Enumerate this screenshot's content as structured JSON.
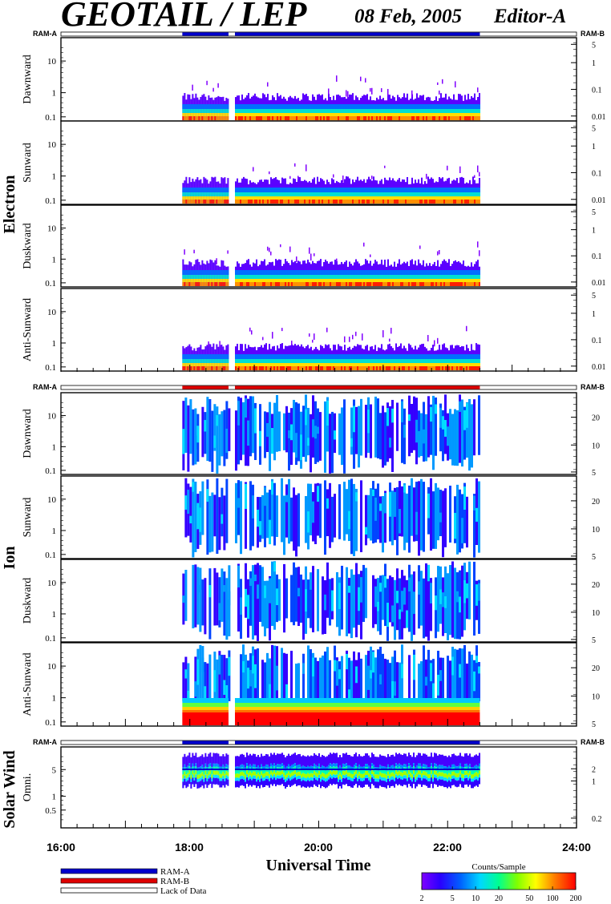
{
  "header": {
    "instrument": "GEOTAIL / LEP",
    "date": "08 Feb, 2005",
    "editor": "Editor-A"
  },
  "groups": [
    {
      "name": "Electron",
      "panels": [
        "Dawnward",
        "Sunward",
        "Duskward",
        "Anti-Sunward"
      ]
    },
    {
      "name": "Ion",
      "panels": [
        "Dawnward",
        "Sunward",
        "Duskward",
        "Anti-Sunward"
      ]
    },
    {
      "name": "Solar Wind",
      "panels": [
        "Omni."
      ]
    }
  ],
  "ram_labels": {
    "left": "RAM-A",
    "right": "RAM-B"
  },
  "axes": {
    "left_ticks_main": [
      "10",
      "1",
      "0.1"
    ],
    "left_ticks_sw": [
      "5",
      "1",
      "0.5"
    ],
    "right_ticks_electron": [
      "5",
      "1",
      "0.1",
      "0.01"
    ],
    "right_ticks_ion": [
      "20",
      "10",
      "5"
    ],
    "right_ticks_ion_top": [
      "20",
      "10",
      "5"
    ],
    "right_ticks_sw": [
      "2",
      "1",
      "0.2"
    ],
    "x_tick_labels": [
      "16:00",
      "18:00",
      "20:00",
      "22:00",
      "24:00"
    ],
    "xlabel": "Universal Time"
  },
  "legend": {
    "items": [
      {
        "label": "RAM-A",
        "color": "#0000cc"
      },
      {
        "label": "RAM-B",
        "color": "#dd0000"
      },
      {
        "label": "Lack of Data",
        "color": "#ffffff"
      }
    ]
  },
  "colorbar": {
    "title": "Counts/Sample",
    "ticks": [
      "2",
      "5",
      "10",
      "20",
      "50",
      "100",
      "200"
    ],
    "stops": [
      "#8000ff",
      "#0000ff",
      "#0080ff",
      "#00e0ff",
      "#00ff80",
      "#80ff00",
      "#ffff00",
      "#ff8000",
      "#ff0000"
    ]
  },
  "chart_data": {
    "type": "heatmap",
    "time_range_ut": [
      "16:00",
      "24:00"
    ],
    "data_coverage_ut": [
      [
        "17:53",
        "18:36"
      ],
      [
        "18:42",
        "22:30"
      ]
    ],
    "ram_bar_modes": {
      "electron": "RAM-A",
      "ion": "RAM-B",
      "solar_wind": "RAM-A"
    },
    "colorscale_counts_per_sample": [
      2,
      200
    ]
  }
}
